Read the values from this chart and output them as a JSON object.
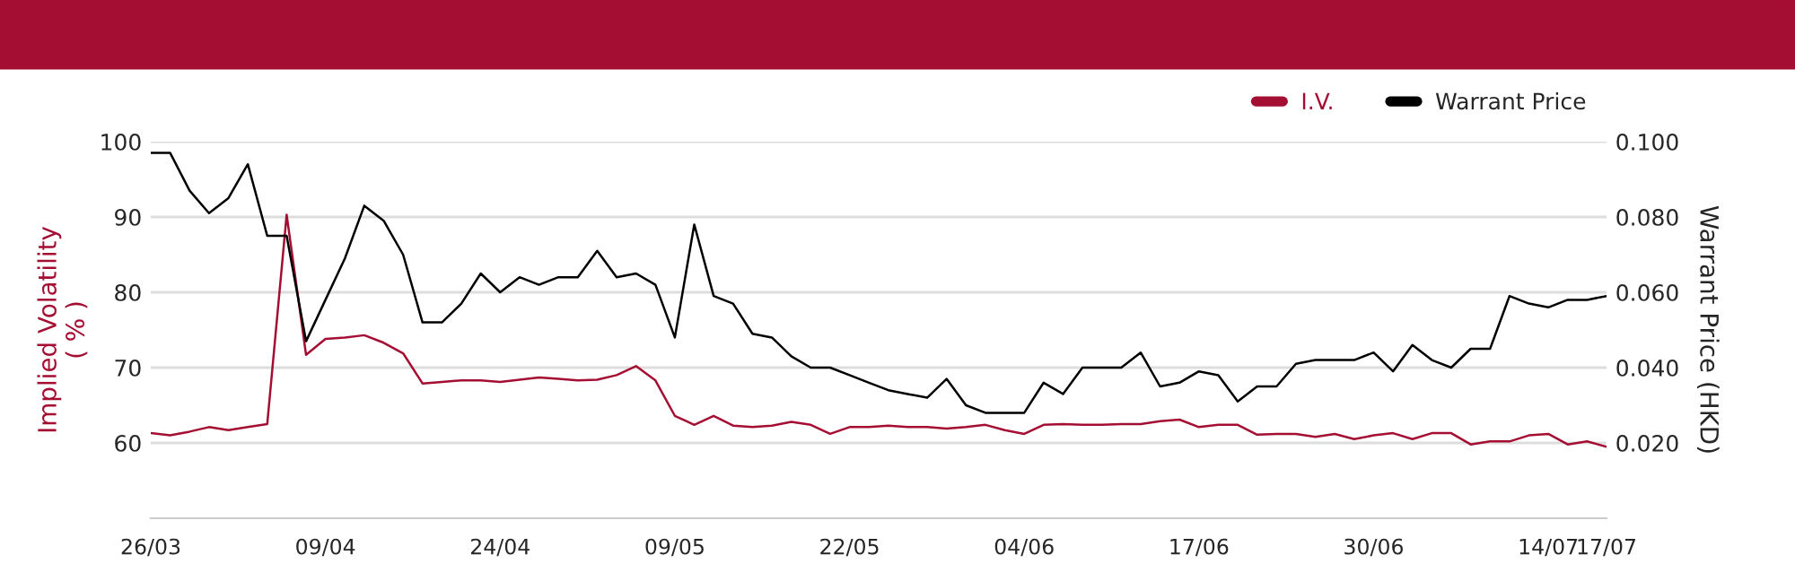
{
  "chart_data": {
    "type": "line",
    "categories": [
      "26/03",
      null,
      null,
      null,
      null,
      null,
      null,
      null,
      null,
      "09/04",
      null,
      null,
      null,
      null,
      null,
      null,
      null,
      null,
      "24/04",
      null,
      null,
      null,
      null,
      null,
      null,
      null,
      null,
      "09/05",
      null,
      null,
      null,
      null,
      null,
      null,
      null,
      null,
      "22/05",
      null,
      null,
      null,
      null,
      null,
      null,
      null,
      null,
      "04/06",
      null,
      null,
      null,
      null,
      null,
      null,
      null,
      null,
      "17/06",
      null,
      null,
      null,
      null,
      null,
      null,
      null,
      null,
      "30/06",
      null,
      null,
      null,
      null,
      null,
      null,
      null,
      null,
      "14/07",
      null,
      null,
      "17/07"
    ],
    "series": [
      {
        "name": "I.V.",
        "color": "#a50e33",
        "values": [
          61.3,
          61.0,
          61.5,
          62.1,
          61.7,
          62.1,
          62.5,
          90.3,
          71.7,
          73.8,
          74.0,
          74.3,
          73.3,
          71.9,
          67.9,
          68.1,
          68.3,
          68.3,
          68.1,
          68.4,
          68.7,
          68.5,
          68.3,
          68.4,
          69.0,
          70.2,
          68.3,
          63.6,
          62.4,
          63.6,
          62.3,
          62.1,
          62.3,
          62.8,
          62.4,
          61.2,
          62.1,
          62.1,
          62.3,
          62.1,
          62.1,
          61.9,
          62.1,
          62.4,
          61.7,
          61.2,
          62.4,
          62.5,
          62.4,
          62.4,
          62.5,
          62.5,
          62.9,
          63.1,
          62.1,
          62.4,
          62.4,
          61.1,
          61.2,
          61.2,
          60.8,
          61.2,
          60.5,
          61.0,
          61.3,
          60.5,
          61.3,
          61.3,
          59.8,
          60.2,
          60.2,
          61.0,
          61.2,
          59.8,
          60.2,
          59.5
        ]
      },
      {
        "name": "Warrant Price",
        "color": "#000000",
        "axis": "y2",
        "values": [
          0.097,
          0.097,
          0.087,
          0.081,
          0.085,
          0.094,
          0.075,
          0.075,
          0.047,
          0.058,
          0.069,
          0.083,
          0.079,
          0.07,
          0.052,
          0.052,
          0.057,
          0.065,
          0.06,
          0.064,
          0.062,
          0.064,
          0.064,
          0.071,
          0.064,
          0.065,
          0.062,
          0.048,
          0.078,
          0.059,
          0.057,
          0.049,
          0.048,
          0.043,
          0.04,
          0.04,
          0.038,
          0.036,
          0.034,
          0.033,
          0.032,
          0.037,
          0.03,
          0.028,
          0.028,
          0.028,
          0.036,
          0.033,
          0.04,
          0.04,
          0.04,
          0.044,
          0.035,
          0.036,
          0.039,
          0.038,
          0.031,
          0.035,
          0.035,
          0.041,
          0.042,
          0.042,
          0.042,
          0.044,
          0.039,
          0.046,
          0.042,
          0.04,
          0.045,
          0.045,
          0.059,
          0.057,
          0.056,
          0.058,
          0.058,
          0.059
        ]
      }
    ],
    "ylabel": "Implied Volatility\n( % )",
    "y2label": "Warrant Price (HKD)",
    "ylim": [
      50,
      100
    ],
    "yticks": [
      60,
      70,
      80,
      90,
      100
    ],
    "y2lim": [
      0,
      0.1
    ],
    "y2ticks": [
      {
        "value": 0.02,
        "label": "0.020"
      },
      {
        "value": 0.04,
        "label": "0.040"
      },
      {
        "value": 0.06,
        "label": "0.060"
      },
      {
        "value": 0.08,
        "label": "0.080"
      },
      {
        "value": 0.1,
        "label": "0.100"
      }
    ],
    "grid": "y",
    "legend": "top right",
    "marker": "none",
    "line_style": "solid"
  }
}
